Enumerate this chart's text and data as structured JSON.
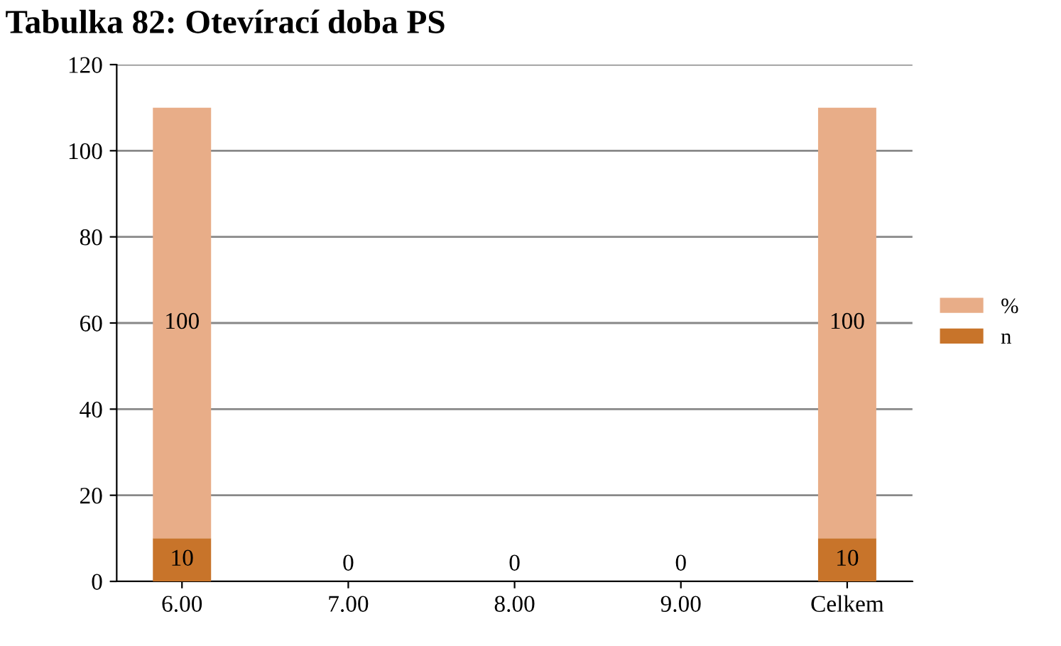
{
  "chart_data": {
    "type": "bar",
    "title": "Tabulka 82: Otevírací doba PS",
    "stacked": true,
    "categories": [
      "6.00",
      "7.00",
      "8.00",
      "9.00",
      "Celkem"
    ],
    "series": [
      {
        "name": "n",
        "color": "#c8742a",
        "values": [
          10,
          0,
          0,
          0,
          10
        ],
        "value_labels": [
          "10",
          null,
          null,
          null,
          "10"
        ]
      },
      {
        "name": "%",
        "color": "#e8ad88",
        "values": [
          100,
          0,
          0,
          0,
          100
        ],
        "value_labels": [
          "100",
          "0",
          "0",
          "0",
          "100"
        ]
      }
    ],
    "ylim": [
      0,
      120
    ],
    "yticks": [
      0,
      20,
      40,
      60,
      80,
      100,
      120
    ],
    "grid": "y",
    "legend": "right"
  }
}
